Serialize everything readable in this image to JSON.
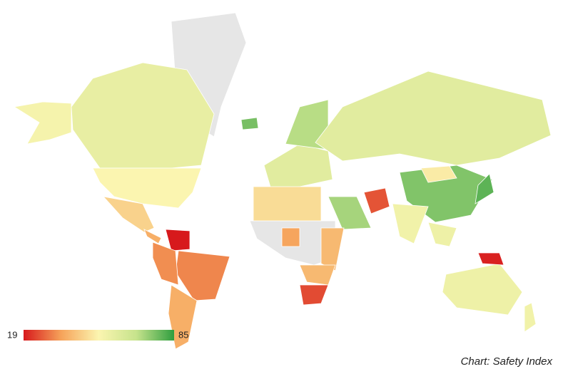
{
  "map": {
    "title": "Chart: Safety Index",
    "legend": {
      "min": 19,
      "max": 85
    },
    "colors": [
      "#d7191c",
      "#f6a35a",
      "#fbf5b0",
      "#c6e38c",
      "#2f9e3f"
    ],
    "missing_color": "#e6e6e6",
    "values": [
      58,
      54,
      52,
      45,
      38,
      19,
      32,
      33,
      38,
      77,
      60,
      70,
      60,
      76,
      80,
      50,
      72,
      26,
      55,
      56,
      47,
      40,
      36,
      40,
      25,
      56,
      20,
      55
    ]
  }
}
